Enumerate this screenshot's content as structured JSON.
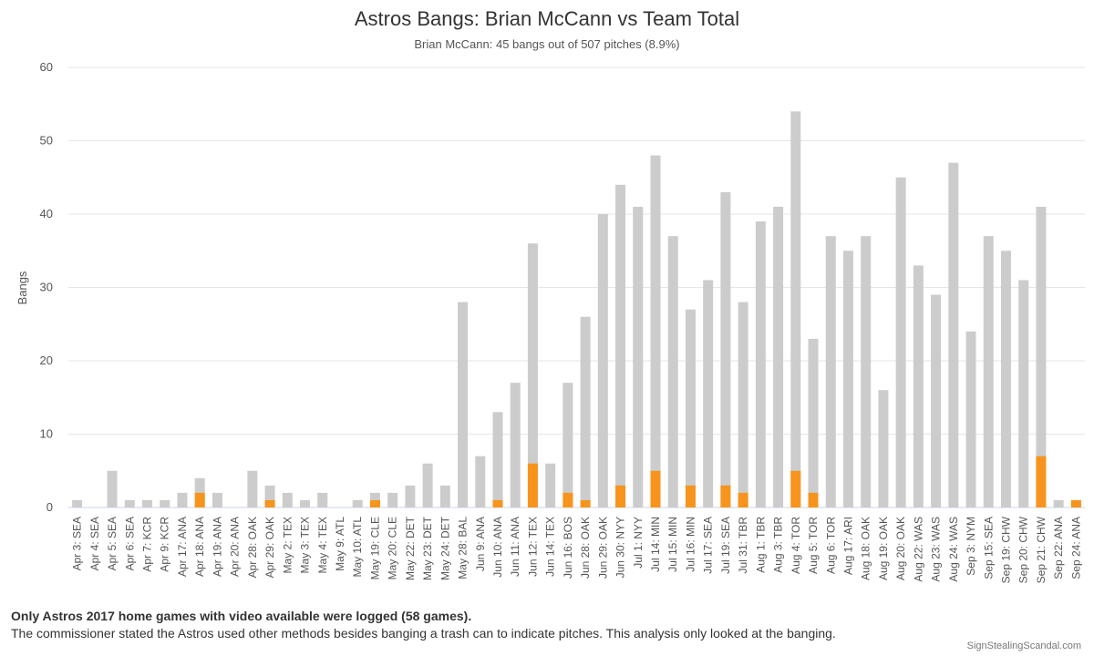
{
  "chart_data": {
    "type": "bar",
    "stacked": false,
    "overlay": true,
    "title": "Astros Bangs: Brian McCann vs Team Total",
    "subtitle": "Brian McCann: 45 bangs out of 507 pitches (8.9%)",
    "ylabel": "Bangs",
    "ylim": [
      0,
      60
    ],
    "yticks": [
      0,
      10,
      20,
      30,
      40,
      50,
      60
    ],
    "grid": true,
    "categories": [
      "Apr 3: SEA",
      "Apr 4: SEA",
      "Apr 5: SEA",
      "Apr 6: SEA",
      "Apr 7: KCR",
      "Apr 9: KCR",
      "Apr 17: ANA",
      "Apr 18: ANA",
      "Apr 19: ANA",
      "Apr 20: ANA",
      "Apr 28: OAK",
      "Apr 29: OAK",
      "May 2: TEX",
      "May 3: TEX",
      "May 4: TEX",
      "May 9: ATL",
      "May 10: ATL",
      "May 19: CLE",
      "May 20: CLE",
      "May 22: DET",
      "May 23: DET",
      "May 24: DET",
      "May 28: BAL",
      "Jun 9: ANA",
      "Jun 10: ANA",
      "Jun 11: ANA",
      "Jun 12: TEX",
      "Jun 14: TEX",
      "Jun 16: BOS",
      "Jun 28: OAK",
      "Jun 29: OAK",
      "Jun 30: NYY",
      "Jul 1: NYY",
      "Jul 14: MIN",
      "Jul 15: MIN",
      "Jul 16: MIN",
      "Jul 17: SEA",
      "Jul 19: SEA",
      "Jul 31: TBR",
      "Aug 1: TBR",
      "Aug 3: TBR",
      "Aug 4: TOR",
      "Aug 5: TOR",
      "Aug 6: TOR",
      "Aug 17: ARI",
      "Aug 18: OAK",
      "Aug 19: OAK",
      "Aug 20: OAK",
      "Aug 22: WAS",
      "Aug 23: WAS",
      "Aug 24: WAS",
      "Sep 3: NYM",
      "Sep 15: SEA",
      "Sep 19: CHW",
      "Sep 20: CHW",
      "Sep 21: CHW",
      "Sep 22: ANA",
      "Sep 24: ANA"
    ],
    "series": [
      {
        "name": "Team Total",
        "color": "#cccccc",
        "values": [
          1,
          0,
          5,
          1,
          1,
          1,
          2,
          4,
          2,
          0,
          5,
          3,
          2,
          1,
          2,
          0,
          1,
          2,
          2,
          3,
          6,
          3,
          28,
          7,
          13,
          17,
          36,
          6,
          17,
          26,
          40,
          44,
          41,
          48,
          37,
          27,
          31,
          43,
          28,
          39,
          41,
          54,
          23,
          37,
          35,
          37,
          16,
          45,
          33,
          29,
          47,
          24,
          37,
          35,
          31,
          41,
          1,
          1
        ]
      },
      {
        "name": "Brian McCann",
        "color": "#f7941d",
        "values": [
          0,
          0,
          0,
          0,
          0,
          0,
          0,
          2,
          0,
          0,
          0,
          1,
          0,
          0,
          0,
          0,
          0,
          1,
          0,
          0,
          0,
          0,
          0,
          0,
          1,
          0,
          6,
          0,
          2,
          1,
          0,
          3,
          0,
          5,
          0,
          3,
          0,
          3,
          2,
          0,
          0,
          5,
          2,
          0,
          0,
          0,
          0,
          0,
          0,
          0,
          0,
          0,
          0,
          0,
          0,
          7,
          0,
          1
        ]
      }
    ]
  },
  "footnotes": {
    "line1": "Only Astros 2017 home games with video available were logged (58 games).",
    "line2": "The commissioner stated the Astros used other methods besides banging a trash can to indicate pitches. This analysis only looked at the banging."
  },
  "credit": "SignStealingScandal.com",
  "colors": {
    "grid": "#e6e6e6",
    "axis": "#ccd6eb",
    "text": "#333333"
  }
}
